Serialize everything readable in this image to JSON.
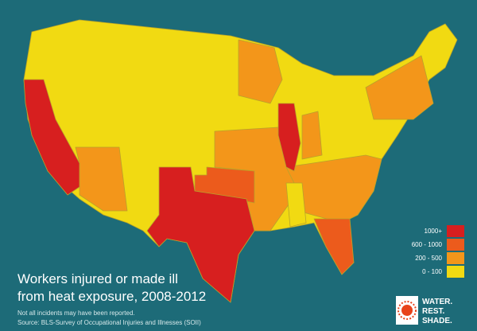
{
  "title_lines": [
    "Workers injured or made ill",
    "from heat exposure, 2008-2012"
  ],
  "note": "Not all incidents may have been reported.",
  "source": "Source: BLS-Survey of Occupational Injuries and Illnesses (SOII)",
  "legend": {
    "items": [
      {
        "label": "1000+",
        "color": "#d71f1f"
      },
      {
        "label": "600 - 1000",
        "color": "#ec5b1c"
      },
      {
        "label": "200 - 500",
        "color": "#f3961a"
      },
      {
        "label": "0 - 100",
        "color": "#f1da12"
      }
    ]
  },
  "logo_lines": [
    "WATER.",
    "REST.",
    "SHADE."
  ]
}
